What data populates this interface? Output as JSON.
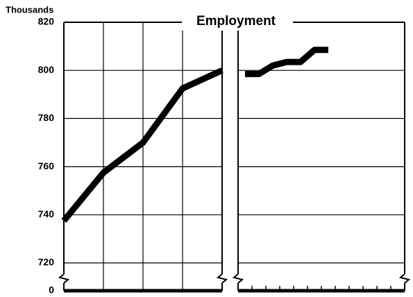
{
  "chart_data": {
    "type": "line",
    "title": "Employment",
    "y_label": "Thousands",
    "color": "#000000",
    "ylim": [
      720,
      820
    ],
    "yticks": [
      0,
      720,
      740,
      760,
      780,
      800,
      820
    ],
    "grid": true,
    "axis_break": true,
    "panels": [
      {
        "categories": [
          null,
          null,
          null,
          null,
          null
        ],
        "values": [
          737.5,
          757.5,
          770,
          792.5,
          800
        ]
      },
      {
        "categories": [
          null,
          null,
          null,
          null,
          null,
          null,
          null,
          null,
          null,
          null,
          null,
          null
        ],
        "values": [
          798.5,
          798.5,
          802,
          803.5,
          803.5,
          808.5,
          808.5,
          null,
          null,
          null,
          null,
          null
        ]
      }
    ]
  }
}
